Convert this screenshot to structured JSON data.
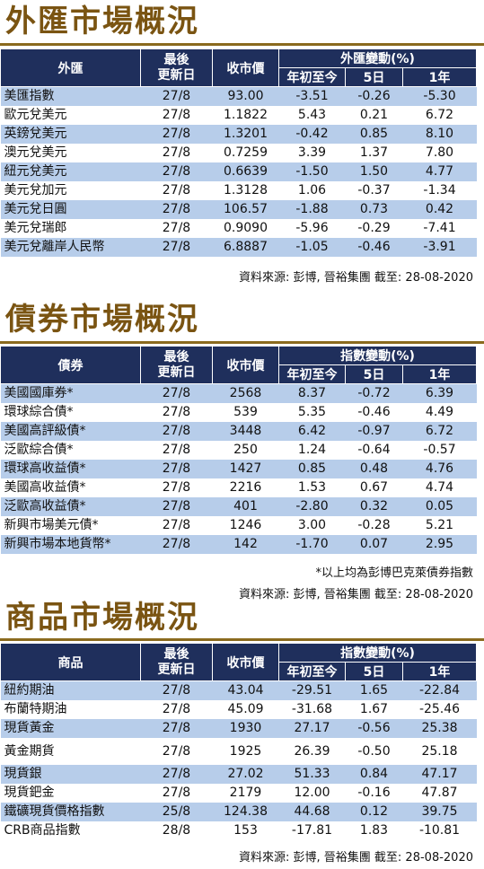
{
  "headers": {
    "last_update": "最後更新日",
    "last_update_l1": "最後",
    "last_update_l2": "更新日",
    "close": "收市價",
    "ytd": "年初至今",
    "d5": "5日",
    "y1": "1年"
  },
  "fx": {
    "title": "外匯市場概況",
    "col_name": "外匯",
    "col_change": "外匯變動(%)",
    "rows": [
      {
        "name": "美匯指數",
        "date": "27/8",
        "close": "93.00",
        "ytd": "-3.51",
        "d5": "-0.26",
        "y1": "-5.30"
      },
      {
        "name": "歐元兌美元",
        "date": "27/8",
        "close": "1.1822",
        "ytd": "5.43",
        "d5": "0.21",
        "y1": "6.72"
      },
      {
        "name": "英鎊兌美元",
        "date": "27/8",
        "close": "1.3201",
        "ytd": "-0.42",
        "d5": "0.85",
        "y1": "8.10"
      },
      {
        "name": "澳元兌美元",
        "date": "27/8",
        "close": "0.7259",
        "ytd": "3.39",
        "d5": "1.37",
        "y1": "7.80"
      },
      {
        "name": "紐元兌美元",
        "date": "27/8",
        "close": "0.6639",
        "ytd": "-1.50",
        "d5": "1.50",
        "y1": "4.77"
      },
      {
        "name": "美元兌加元",
        "date": "27/8",
        "close": "1.3128",
        "ytd": "1.06",
        "d5": "-0.37",
        "y1": "-1.34"
      },
      {
        "name": "美元兌日圓",
        "date": "27/8",
        "close": "106.57",
        "ytd": "-1.88",
        "d5": "0.73",
        "y1": "0.42"
      },
      {
        "name": "美元兌瑞郎",
        "date": "27/8",
        "close": "0.9090",
        "ytd": "-5.96",
        "d5": "-0.29",
        "y1": "-7.41"
      },
      {
        "name": "美元兌離岸人民幣",
        "date": "27/8",
        "close": "6.8887",
        "ytd": "-1.05",
        "d5": "-0.46",
        "y1": "-3.91"
      }
    ],
    "source": "資料來源: 彭博, 晉裕集團 截至: 28-08-2020"
  },
  "bonds": {
    "title": "債券市場概況",
    "col_name": "債券",
    "col_change": "指數變動(%)",
    "rows": [
      {
        "name": "美國國庫券*",
        "date": "27/8",
        "close": "2568",
        "ytd": "8.37",
        "d5": "-0.72",
        "y1": "6.39"
      },
      {
        "name": "環球綜合債*",
        "date": "27/8",
        "close": "539",
        "ytd": "5.35",
        "d5": "-0.46",
        "y1": "4.49"
      },
      {
        "name": "美國高評級債*",
        "date": "27/8",
        "close": "3448",
        "ytd": "6.42",
        "d5": "-0.97",
        "y1": "6.72"
      },
      {
        "name": "泛歐綜合債*",
        "date": "27/8",
        "close": "250",
        "ytd": "1.24",
        "d5": "-0.64",
        "y1": "-0.57"
      },
      {
        "name": "環球高收益債*",
        "date": "27/8",
        "close": "1427",
        "ytd": "0.85",
        "d5": "0.48",
        "y1": "4.76"
      },
      {
        "name": "美國高收益債*",
        "date": "27/8",
        "close": "2216",
        "ytd": "1.53",
        "d5": "0.67",
        "y1": "4.74"
      },
      {
        "name": "泛歐高收益債*",
        "date": "27/8",
        "close": "401",
        "ytd": "-2.80",
        "d5": "0.32",
        "y1": "0.05"
      },
      {
        "name": "新興市場美元債*",
        "date": "27/8",
        "close": "1246",
        "ytd": "3.00",
        "d5": "-0.28",
        "y1": "5.21"
      },
      {
        "name": "新興市場本地貨幣*",
        "date": "27/8",
        "close": "142",
        "ytd": "-1.70",
        "d5": "0.07",
        "y1": "2.95"
      }
    ],
    "note": "*以上均為彭博巴克萊債券指數",
    "source": "資料來源: 彭博, 晉裕集團 截至: 28-08-2020"
  },
  "commodities": {
    "title": "商品市場概況",
    "col_name": "商品",
    "col_change": "指數變動(%)",
    "rows": [
      {
        "name": "紐約期油",
        "date": "27/8",
        "close": "43.04",
        "ytd": "-29.51",
        "d5": "1.65",
        "y1": "-22.84"
      },
      {
        "name": "布蘭特期油",
        "date": "27/8",
        "close": "45.09",
        "ytd": "-31.68",
        "d5": "1.67",
        "y1": "-25.46"
      },
      {
        "name": "現貨黃金",
        "date": "27/8",
        "close": "1930",
        "ytd": "27.17",
        "d5": "-0.56",
        "y1": "25.38"
      },
      {
        "name": "黃金期貨",
        "date": "27/8",
        "close": "1925",
        "ytd": "26.39",
        "d5": "-0.50",
        "y1": "25.18"
      },
      {
        "name": "現貨銀",
        "date": "27/8",
        "close": "27.02",
        "ytd": "51.33",
        "d5": "0.84",
        "y1": "47.17"
      },
      {
        "name": "現貨鈀金",
        "date": "27/8",
        "close": "2179",
        "ytd": "12.00",
        "d5": "-0.16",
        "y1": "47.87"
      },
      {
        "name": "鐵礦現貨價格指數",
        "date": "25/8",
        "close": "124.38",
        "ytd": "44.68",
        "d5": "0.12",
        "y1": "39.75"
      },
      {
        "name": "CRB商品指數",
        "date": "28/8",
        "close": "153",
        "ytd": "-17.81",
        "d5": "1.83",
        "y1": "-10.81"
      }
    ],
    "source": "資料來源: 彭博, 晉裕集團 截至: 28-08-2020"
  }
}
